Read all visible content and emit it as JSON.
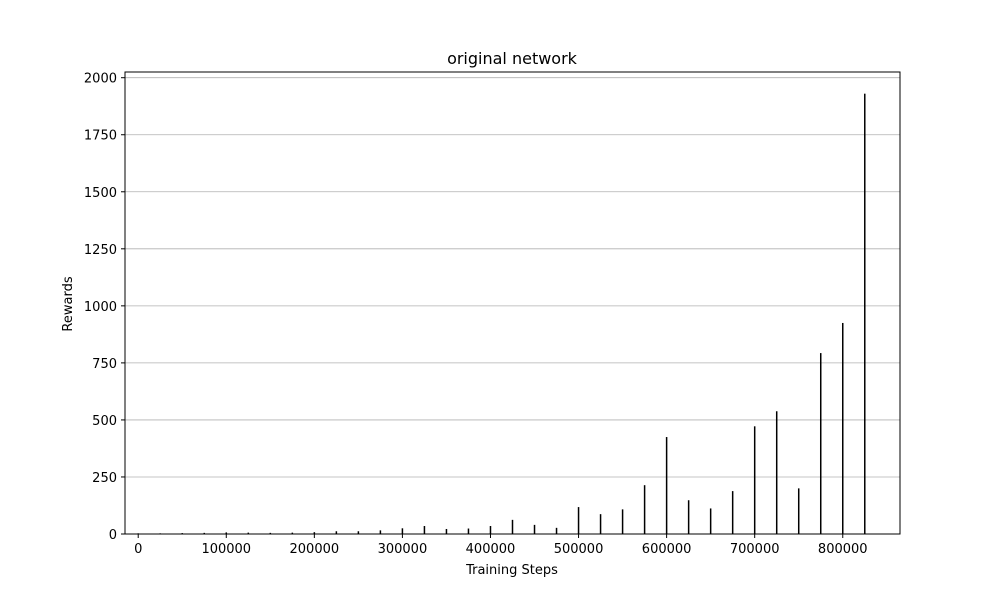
{
  "chart_data": {
    "type": "bar",
    "title": "original network",
    "xlabel": "Training Steps",
    "ylabel": "Rewards",
    "xlim": [
      -15000,
      865000
    ],
    "ylim": [
      0,
      2025
    ],
    "x_ticks": [
      0,
      100000,
      200000,
      300000,
      400000,
      500000,
      600000,
      700000,
      800000
    ],
    "y_ticks": [
      0,
      250,
      500,
      750,
      1000,
      1250,
      1500,
      1750,
      2000
    ],
    "grid": "y-major",
    "bar_color": "#000000",
    "x": [
      0,
      25000,
      50000,
      75000,
      100000,
      125000,
      150000,
      175000,
      200000,
      225000,
      250000,
      275000,
      300000,
      325000,
      350000,
      375000,
      400000,
      425000,
      450000,
      475000,
      500000,
      525000,
      550000,
      575000,
      600000,
      625000,
      650000,
      675000,
      700000,
      725000,
      750000,
      775000,
      800000,
      825000
    ],
    "values": [
      3,
      3,
      4,
      5,
      7,
      6,
      5,
      6,
      8,
      12,
      12,
      16,
      25,
      35,
      22,
      24,
      35,
      62,
      40,
      27,
      118,
      87,
      108,
      214,
      425,
      148,
      112,
      188,
      472,
      538,
      200,
      793,
      925,
      1930
    ]
  }
}
